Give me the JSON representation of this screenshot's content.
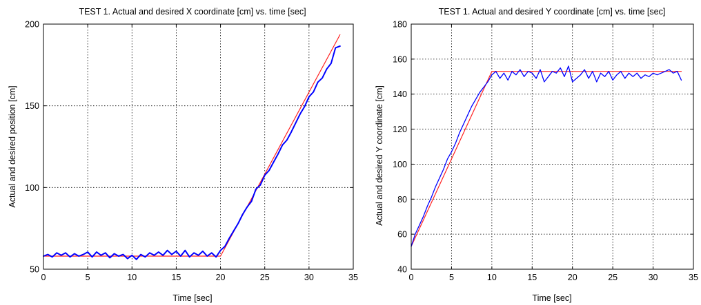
{
  "chart_data": [
    {
      "type": "line",
      "title": "TEST 1.  Actual and desired X coordinate [cm] vs. time [sec]",
      "xlabel": "Time [sec]",
      "ylabel": "Actual and desired position [cm]",
      "xlim": [
        0,
        35
      ],
      "ylim": [
        50,
        200
      ],
      "xticks": [
        0,
        5,
        10,
        15,
        20,
        25,
        30,
        35
      ],
      "yticks": [
        50,
        100,
        150,
        200
      ],
      "grid": true,
      "series": [
        {
          "color": "#ff2020",
          "x": [
            0,
            20,
            33.5
          ],
          "y": [
            58,
            58,
            193.5
          ]
        },
        {
          "color": "#0000ff",
          "x": [
            0,
            0.5,
            1,
            1.5,
            2,
            2.5,
            3,
            3.5,
            4,
            4.5,
            5,
            5.5,
            6,
            6.5,
            7,
            7.5,
            8,
            8.5,
            9,
            9.5,
            10,
            10.5,
            11,
            11.5,
            12,
            12.5,
            13,
            13.5,
            14,
            14.5,
            15,
            15.5,
            16,
            16.5,
            17,
            17.5,
            18,
            18.5,
            19,
            19.5,
            20,
            20.5,
            21,
            21.5,
            22,
            22.5,
            23,
            23.5,
            24,
            24.5,
            25,
            25.5,
            26,
            26.5,
            27,
            27.5,
            28,
            28.5,
            29,
            29.5,
            30,
            30.5,
            31,
            31.5,
            32,
            32.5,
            33,
            33.5
          ],
          "y": [
            58,
            59,
            57.5,
            60,
            58.5,
            60,
            57.5,
            59.5,
            58,
            59,
            60.5,
            57.5,
            60.5,
            58.5,
            60,
            57,
            59.5,
            58,
            59,
            56.5,
            58.5,
            56,
            59,
            57.5,
            60,
            58.5,
            60.5,
            58.5,
            61.5,
            59,
            61,
            58,
            61.5,
            57.5,
            60,
            58.5,
            61,
            58,
            60,
            57.5,
            61.5,
            64,
            69,
            73.5,
            78,
            83.5,
            88,
            91.5,
            99,
            101.5,
            107.5,
            110.5,
            115.5,
            120.5,
            126,
            129,
            134,
            139.5,
            145,
            149.5,
            155.5,
            158.5,
            164.5,
            167,
            172.5,
            176,
            185.5,
            186.5
          ]
        }
      ]
    },
    {
      "type": "line",
      "title": "TEST 1.  Actual and desired Y coordinate  [cm] vs. time [sec]",
      "xlabel": "Time [sec]",
      "ylabel": "Actual and desired Y coordinate [cm]",
      "xlim": [
        0,
        35
      ],
      "ylim": [
        40,
        180
      ],
      "xticks": [
        0,
        5,
        10,
        15,
        20,
        25,
        30,
        35
      ],
      "yticks": [
        40,
        60,
        80,
        100,
        120,
        140,
        160,
        180
      ],
      "grid": true,
      "series": [
        {
          "color": "#ff2020",
          "x": [
            0,
            10,
            33.5
          ],
          "y": [
            53,
            153,
            153
          ]
        },
        {
          "color": "#0000ff",
          "x": [
            0,
            0.5,
            1,
            1.5,
            2,
            2.5,
            3,
            3.5,
            4,
            4.5,
            5,
            5.5,
            6,
            6.5,
            7,
            7.5,
            8,
            8.5,
            9,
            9.5,
            10,
            10.5,
            11,
            11.5,
            12,
            12.5,
            13,
            13.5,
            14,
            14.5,
            15,
            15.5,
            16,
            16.5,
            17,
            17.5,
            18,
            18.5,
            19,
            19.5,
            20,
            20.5,
            21,
            21.5,
            22,
            22.5,
            23,
            23.5,
            24,
            24.5,
            25,
            25.5,
            26,
            26.5,
            27,
            27.5,
            28,
            28.5,
            29,
            29.5,
            30,
            30.5,
            31,
            31.5,
            32,
            32.5,
            33,
            33.5
          ],
          "y": [
            53,
            60,
            65,
            70,
            76,
            81,
            87,
            92,
            97,
            103,
            107,
            112,
            118,
            123,
            128,
            133,
            137,
            141,
            144,
            147,
            151,
            153,
            149,
            152,
            148,
            153,
            151,
            154,
            150,
            153,
            152,
            149,
            154,
            147,
            150,
            153,
            152,
            155,
            150,
            156,
            147,
            149,
            151,
            154,
            149,
            153,
            147,
            152,
            150,
            153,
            148,
            151,
            153,
            149,
            152,
            150,
            152,
            149,
            151,
            150,
            152,
            151,
            152,
            153,
            154,
            152,
            153,
            148
          ]
        }
      ]
    }
  ]
}
